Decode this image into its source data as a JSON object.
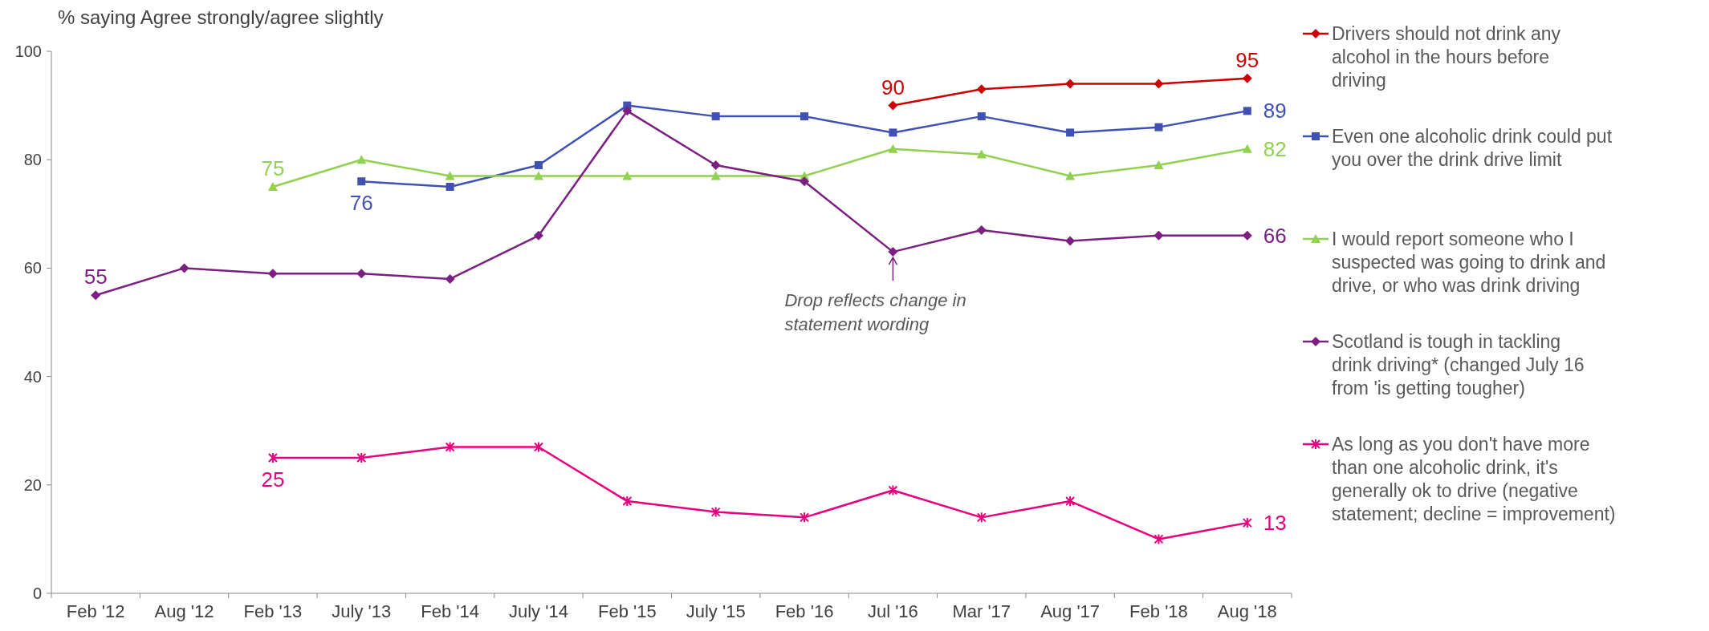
{
  "chart_data": {
    "type": "line",
    "ylabel": "% saying Agree strongly/agree slightly",
    "categories": [
      "Feb '12",
      "Aug '12",
      "Feb '13",
      "July '13",
      "Feb '14",
      "July '14",
      "Feb '15",
      "July '15",
      "Feb '16",
      "Jul '16",
      "Mar '17",
      "Aug '17",
      "Feb '18",
      "Aug '18"
    ],
    "ylim": [
      0,
      100
    ],
    "yticks": [
      0,
      20,
      40,
      60,
      80,
      100
    ],
    "grid": false,
    "legend": "right",
    "series": [
      {
        "name": "Drivers should not drink any alcohol in the hours before driving",
        "color": "#cc0000",
        "marker": "diamond",
        "values": [
          null,
          null,
          null,
          null,
          null,
          null,
          null,
          null,
          null,
          90,
          93,
          94,
          94,
          95
        ],
        "value_labels": [
          null,
          null,
          null,
          null,
          null,
          null,
          null,
          null,
          null,
          "90",
          null,
          null,
          null,
          "95"
        ]
      },
      {
        "name": "Even one alcoholic drink could put you over the drink drive limit",
        "color": "#3f51b5",
        "marker": "square",
        "values": [
          null,
          null,
          null,
          76,
          75,
          79,
          90,
          88,
          88,
          85,
          88,
          85,
          86,
          89
        ],
        "value_labels": [
          null,
          null,
          null,
          "76",
          null,
          null,
          null,
          null,
          null,
          null,
          null,
          null,
          null,
          "89"
        ]
      },
      {
        "name": "I would report someone who I suspected was going to drink and drive, or who was drink driving",
        "color": "#92d050",
        "marker": "triangle",
        "values": [
          null,
          null,
          75,
          80,
          77,
          77,
          77,
          77,
          77,
          82,
          81,
          77,
          79,
          82
        ],
        "value_labels": [
          null,
          null,
          "75",
          null,
          null,
          null,
          null,
          null,
          null,
          null,
          null,
          null,
          null,
          "82"
        ]
      },
      {
        "name": "Scotland is tough in tackling drink driving* (changed July 16 from 'is getting tougher)",
        "color": "#7b1f80",
        "marker": "diamond",
        "values": [
          55,
          60,
          59,
          59,
          58,
          66,
          89,
          79,
          76,
          63,
          67,
          65,
          66,
          66
        ],
        "value_labels": [
          "55",
          null,
          null,
          null,
          null,
          null,
          null,
          null,
          null,
          null,
          null,
          null,
          null,
          "66"
        ]
      },
      {
        "name": "As long as you don't have more than one alcoholic drink, it's generally ok to drive (negative statement; decline = improvement)",
        "color": "#e6007e",
        "marker": "cross",
        "values": [
          null,
          null,
          25,
          25,
          27,
          27,
          17,
          15,
          14,
          19,
          14,
          17,
          10,
          13
        ],
        "value_labels": [
          null,
          null,
          "25",
          null,
          null,
          null,
          null,
          null,
          null,
          null,
          null,
          null,
          null,
          "13"
        ]
      }
    ],
    "annotations": [
      {
        "text": "Drop reflects change in statement wording",
        "x": "Jul '16",
        "y": 63
      }
    ]
  }
}
